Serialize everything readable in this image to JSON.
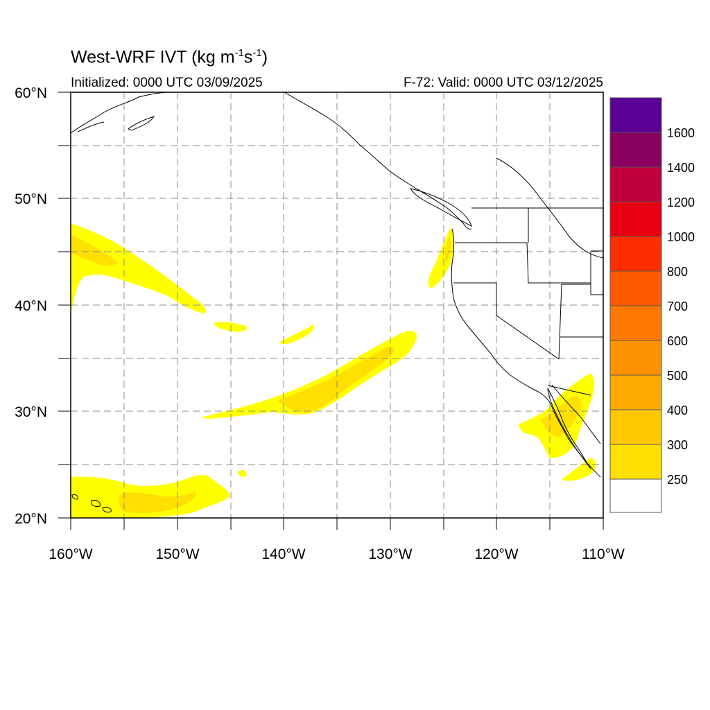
{
  "header": {
    "title_main": "West-WRF IVT (kg m",
    "exp1": "-1",
    "title_mid": "s",
    "exp2": "-1",
    "title_end": ")",
    "initialized": "Initialized: 0000 UTC 03/09/2025",
    "valid": "F-72: Valid: 0000 UTC 03/12/2025"
  },
  "map": {
    "lon_labels": [
      "160°W",
      "150°W",
      "140°W",
      "130°W",
      "120°W",
      "110°W"
    ],
    "lat_labels": [
      "60°N",
      "50°N",
      "40°N",
      "30°N",
      "20°N"
    ],
    "lon_range": [
      -160,
      -110
    ],
    "lat_range": [
      20,
      60
    ],
    "grid": true
  },
  "colorbar": {
    "levels": [
      "250",
      "300",
      "400",
      "500",
      "600",
      "700",
      "800",
      "1000",
      "1200",
      "1400",
      "1600"
    ],
    "colors": [
      "#ffffff",
      "#ffff00",
      "#ffe000",
      "#ffc800",
      "#ffaa00",
      "#ff9200",
      "#ff7800",
      "#ff5a00",
      "#ff2e00",
      "#ea0012",
      "#c0003a",
      "#8a005e",
      "#5a0096"
    ]
  },
  "colors": {
    "ivt_250": "#ffff00",
    "ivt_300": "#ffe000",
    "ivt_400": "#ffc800",
    "coast": "#000000",
    "grid": "#8c8c8c"
  }
}
